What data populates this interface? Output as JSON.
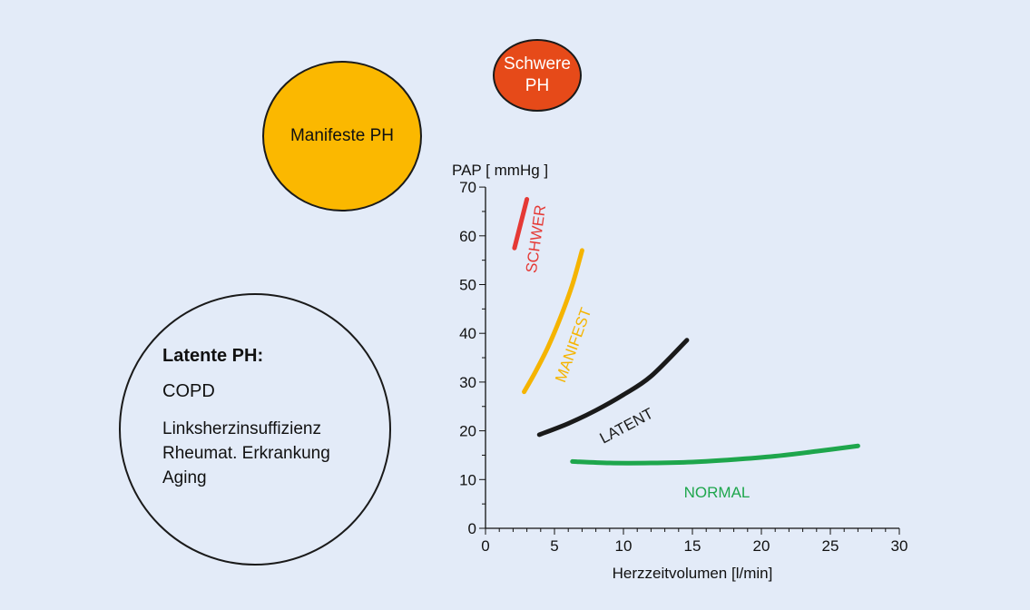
{
  "bubbles": {
    "manifest": {
      "label": "Manifeste PH",
      "color": "#fbb800"
    },
    "schwer": {
      "line1": "Schwere",
      "line2": "PH",
      "color": "#e64a19"
    },
    "latent": {
      "title": "Latente PH:",
      "items": [
        "COPD",
        "Linksherzinsuffizienz",
        "Rheumat. Erkrankung",
        "Aging"
      ]
    }
  },
  "chart_data": {
    "type": "line",
    "ylabel": "PAP [ mmHg ]",
    "xlabel": "Herzzeitvolumen [l/min]",
    "xlim": [
      0,
      30
    ],
    "ylim": [
      0,
      70
    ],
    "xticks": [
      0,
      5,
      10,
      15,
      20,
      25,
      30
    ],
    "yticks": [
      0,
      10,
      20,
      30,
      40,
      50,
      60,
      70
    ],
    "grid": false,
    "series": [
      {
        "name": "SCHWER",
        "color": "#e53935",
        "x": [
          2.1,
          3.0
        ],
        "y": [
          57.5,
          67.5
        ]
      },
      {
        "name": "MANIFEST",
        "color": "#f5b400",
        "x": [
          2.8,
          3.6,
          4.5,
          5.4,
          6.3,
          7.0
        ],
        "y": [
          28,
          32,
          37,
          43,
          50,
          57
        ]
      },
      {
        "name": "LATENT",
        "color": "#1a1a1a",
        "x": [
          3.9,
          6.0,
          8.0,
          10.0,
          12.0,
          14.6
        ],
        "y": [
          19.2,
          21.5,
          24.2,
          27.4,
          31.2,
          38.6
        ]
      },
      {
        "name": "NORMAL",
        "color": "#1ea64c",
        "x": [
          6.3,
          9.0,
          12.0,
          15.0,
          18.0,
          21.0,
          24.0,
          27.0
        ],
        "y": [
          13.7,
          13.4,
          13.4,
          13.6,
          14.1,
          14.8,
          15.8,
          16.9
        ]
      }
    ]
  }
}
